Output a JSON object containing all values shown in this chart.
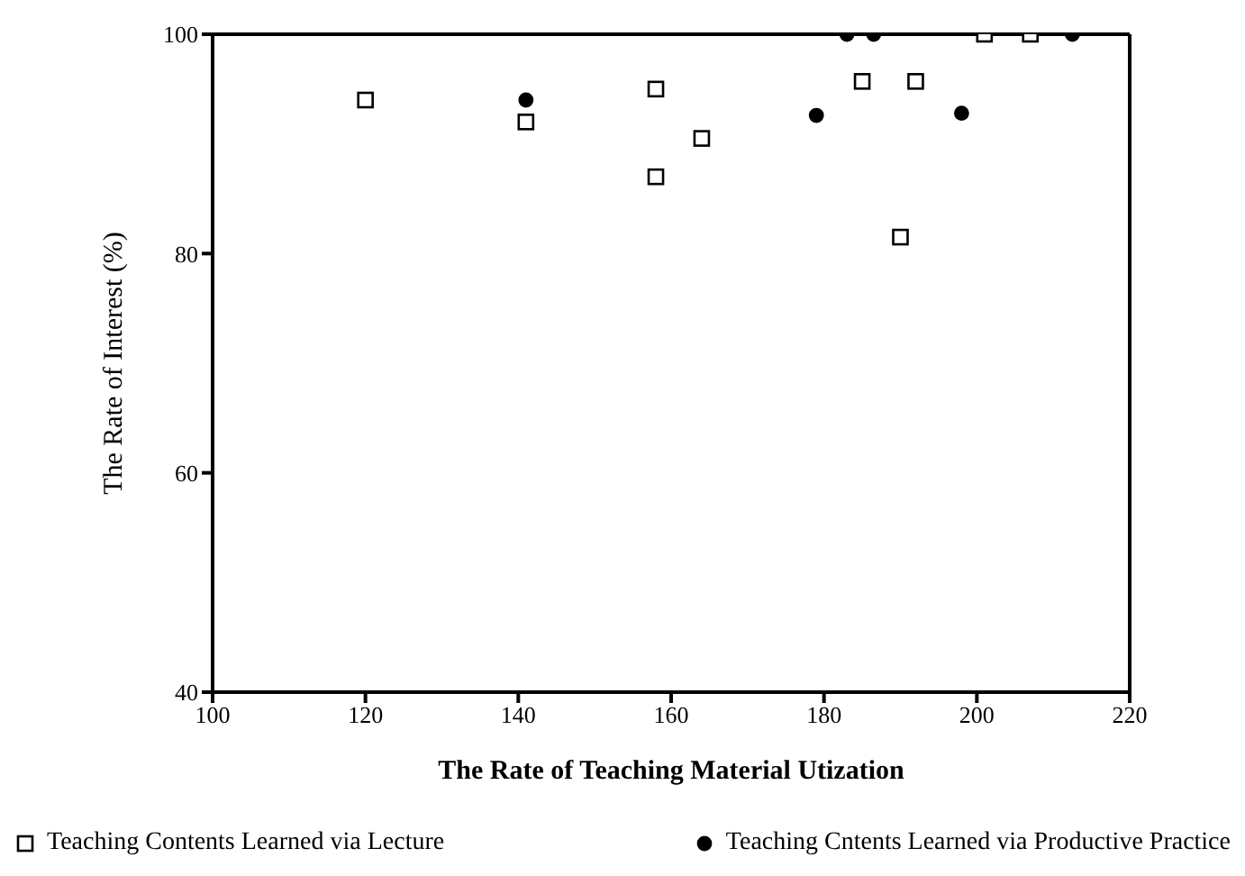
{
  "chart_data": {
    "type": "scatter",
    "xlabel": "The Rate of Teaching Material Utization",
    "ylabel": "The Rate of Interest (%)",
    "xlim": [
      100,
      220
    ],
    "xticks": [
      100,
      120,
      140,
      160,
      180,
      200,
      220
    ],
    "ylim": [
      40,
      100
    ],
    "yticks": [
      40,
      60,
      80,
      100
    ],
    "legend": "bottom",
    "series": [
      {
        "name": "Teaching Contents Learned via Lecture",
        "color": "#000000",
        "marker": "square",
        "x": [
          120,
          141,
          158,
          158,
          164,
          185,
          192,
          190,
          201,
          207
        ],
        "values": [
          94,
          92,
          95,
          87,
          90.5,
          95.7,
          95.7,
          81.5,
          100,
          100
        ]
      },
      {
        "name": "Teaching Cntents Learned via Productive Practice",
        "color": "#000000",
        "marker": "circle",
        "x": [
          141,
          179,
          183,
          186.5,
          198,
          212.5
        ],
        "values": [
          94,
          92.6,
          100,
          100,
          92.8,
          100
        ]
      }
    ]
  }
}
